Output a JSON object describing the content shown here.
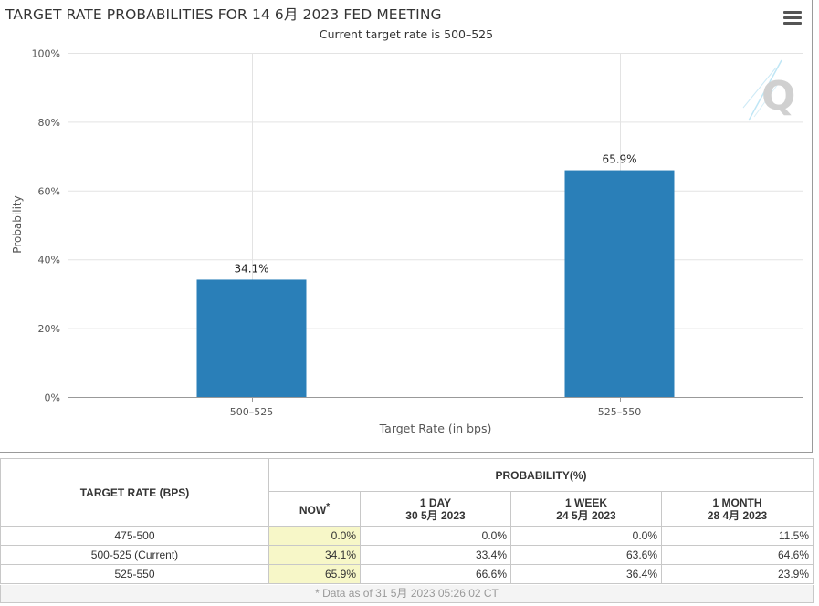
{
  "chart_data": {
    "type": "bar",
    "title": "TARGET RATE PROBABILITIES FOR 14 6月 2023 FED MEETING",
    "subtitle": "Current target rate is 500–525",
    "categories": [
      "500–525",
      "525–550"
    ],
    "values": [
      34.1,
      65.9
    ],
    "data_labels": [
      "34.1%",
      "65.9%"
    ],
    "xlabel": "Target Rate (in bps)",
    "ylabel": "Probability",
    "ylim": [
      0,
      100
    ],
    "yticks": [
      0,
      20,
      40,
      60,
      80,
      100
    ],
    "ytick_labels": [
      "0%",
      "20%",
      "40%",
      "60%",
      "80%",
      "100%"
    ],
    "grid": true,
    "bar_color": "#2a7fb8"
  },
  "watermark": "Q",
  "table": {
    "header_rate": "TARGET RATE (BPS)",
    "header_prob": "PROBABILITY(%)",
    "col_now": "NOW",
    "col_now_mark": "*",
    "cols": [
      {
        "line1": "1 DAY",
        "line2": "30 5月 2023"
      },
      {
        "line1": "1 WEEK",
        "line2": "24 5月 2023"
      },
      {
        "line1": "1 MONTH",
        "line2": "28 4月 2023"
      }
    ],
    "rows": [
      {
        "rate": "475-500",
        "now": "0.0%",
        "d1": "0.0%",
        "w1": "0.0%",
        "m1": "11.5%"
      },
      {
        "rate": "500-525 (Current)",
        "now": "34.1%",
        "d1": "33.4%",
        "w1": "63.6%",
        "m1": "64.6%"
      },
      {
        "rate": "525-550",
        "now": "65.9%",
        "d1": "66.6%",
        "w1": "36.4%",
        "m1": "23.9%"
      }
    ],
    "note": "* Data as of 31 5月 2023 05:26:02 CT"
  }
}
